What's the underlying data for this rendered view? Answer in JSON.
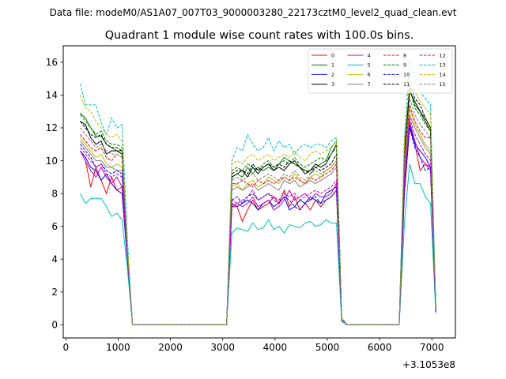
{
  "header": {
    "data_file": "Data file: modeM0/AS1A07_007T03_9000003280_22173cztM0_level2_quad_clean.evt"
  },
  "chart_data": {
    "type": "line",
    "title": "Quadrant 1 module wise count rates with 100.0s bins.",
    "xlabel": "",
    "ylabel": "",
    "x_offset_label": "+3.1053e8",
    "xlim": [
      -50,
      7450
    ],
    "ylim": [
      -0.8,
      17
    ],
    "xticks": [
      0,
      1000,
      2000,
      3000,
      4000,
      5000,
      6000,
      7000
    ],
    "yticks": [
      0,
      2,
      4,
      6,
      8,
      10,
      12,
      14,
      16
    ],
    "grid": false,
    "legend_position": "top-right",
    "x": [
      275,
      375,
      475,
      575,
      675,
      775,
      875,
      975,
      1075,
      1175,
      1275,
      1375,
      2975,
      3075,
      3175,
      3275,
      3375,
      3475,
      3575,
      3675,
      3775,
      3875,
      3975,
      4075,
      4175,
      4275,
      4375,
      4475,
      4575,
      4675,
      4775,
      4875,
      4975,
      5075,
      5175,
      5275,
      5375,
      6375,
      6475,
      6575,
      6675,
      6775,
      6875,
      6975,
      7075
    ],
    "series": [
      {
        "name": "0",
        "color": "#ff0000",
        "style": "solid",
        "values": [
          10.6,
          10.0,
          8.4,
          9.6,
          8.8,
          8.0,
          9.0,
          8.2,
          8.4,
          4.2,
          0,
          0,
          0,
          0,
          7.2,
          7.2,
          6.3,
          7.0,
          7.6,
          7.0,
          7.2,
          7.4,
          7.8,
          7.4,
          8.2,
          7.2,
          7.8,
          7.0,
          7.4,
          7.0,
          7.6,
          7.2,
          7.6,
          7.8,
          8.2,
          0.3,
          0,
          0,
          8.0,
          12.0,
          11.0,
          9.4,
          9.8,
          9.4,
          0.9
        ]
      },
      {
        "name": "1",
        "color": "#008000",
        "style": "solid",
        "values": [
          12.9,
          12.6,
          12.0,
          11.5,
          11.5,
          11.0,
          10.8,
          10.6,
          10.6,
          4.6,
          0,
          0,
          0,
          0,
          9.0,
          9.2,
          9.0,
          9.6,
          9.2,
          9.6,
          9.4,
          9.6,
          9.4,
          9.8,
          10.2,
          10.0,
          9.8,
          9.6,
          9.4,
          9.4,
          9.6,
          9.8,
          10.0,
          10.8,
          11.2,
          0.4,
          0,
          0,
          10.5,
          14.4,
          13.4,
          13.0,
          12.6,
          12.0,
          1.0
        ]
      },
      {
        "name": "2",
        "color": "#0000ff",
        "style": "solid",
        "values": [
          10.6,
          10.2,
          9.6,
          9.4,
          8.8,
          9.2,
          8.6,
          8.2,
          8.0,
          4.0,
          0,
          0,
          0,
          0,
          7.4,
          7.2,
          7.4,
          7.6,
          7.4,
          7.0,
          7.4,
          7.6,
          7.2,
          7.4,
          7.8,
          7.0,
          7.2,
          7.6,
          7.4,
          7.8,
          7.6,
          7.4,
          8.0,
          8.2,
          8.4,
          0.3,
          0,
          0,
          8.2,
          12.2,
          11.0,
          10.6,
          10.2,
          9.6,
          0.8
        ]
      },
      {
        "name": "3",
        "color": "#000000",
        "style": "solid",
        "values": [
          12.4,
          12.2,
          11.4,
          11.0,
          11.2,
          10.4,
          10.6,
          10.6,
          10.4,
          4.4,
          0,
          0,
          0,
          0,
          9.0,
          9.2,
          9.4,
          9.0,
          9.6,
          9.2,
          9.6,
          9.8,
          9.4,
          9.6,
          9.4,
          9.8,
          10.0,
          9.6,
          9.2,
          9.4,
          9.8,
          9.6,
          9.8,
          10.4,
          11.0,
          0.4,
          0,
          0,
          10.4,
          14.2,
          13.6,
          13.0,
          12.4,
          11.8,
          1.0
        ]
      },
      {
        "name": "4",
        "color": "#bf00bf",
        "style": "solid",
        "values": [
          10.6,
          10.0,
          9.4,
          9.0,
          9.6,
          9.0,
          8.6,
          9.0,
          8.4,
          4.1,
          0,
          0,
          0,
          0,
          7.2,
          7.4,
          7.2,
          7.4,
          7.8,
          7.2,
          7.4,
          7.6,
          7.0,
          7.2,
          7.6,
          8.2,
          7.6,
          7.8,
          8.0,
          7.6,
          8.0,
          7.8,
          7.8,
          8.0,
          8.6,
          0.3,
          0,
          0,
          8.6,
          12.4,
          11.2,
          10.2,
          9.8,
          9.6,
          0.9
        ]
      },
      {
        "name": "5",
        "color": "#00bfbf",
        "style": "solid",
        "values": [
          8.0,
          7.4,
          7.7,
          7.7,
          7.7,
          7.2,
          6.6,
          6.8,
          6.4,
          3.5,
          0,
          0,
          0,
          0,
          5.6,
          5.9,
          5.8,
          5.7,
          6.2,
          5.8,
          5.9,
          6.4,
          5.8,
          6.0,
          5.6,
          6.1,
          6.0,
          5.9,
          6.2,
          6.3,
          6.0,
          6.1,
          6.4,
          6.2,
          6.2,
          0.2,
          0,
          0,
          6.2,
          9.8,
          8.6,
          8.6,
          7.8,
          7.4,
          0.7
        ]
      },
      {
        "name": "6",
        "color": "#bfbf00",
        "style": "solid",
        "values": [
          11.4,
          11.0,
          10.6,
          10.2,
          10.4,
          9.8,
          9.6,
          9.8,
          9.6,
          4.3,
          0,
          0,
          0,
          0,
          8.4,
          8.6,
          8.2,
          8.6,
          8.8,
          8.4,
          8.6,
          9.0,
          8.8,
          8.6,
          9.0,
          8.8,
          9.2,
          8.8,
          8.6,
          9.0,
          9.2,
          9.0,
          9.4,
          9.6,
          10.0,
          0.3,
          0,
          0,
          9.6,
          13.2,
          12.2,
          11.6,
          11.0,
          10.6,
          0.9
        ]
      },
      {
        "name": "7",
        "color": "#808080",
        "style": "solid",
        "values": [
          11.2,
          10.8,
          10.4,
          10.0,
          10.0,
          9.6,
          9.6,
          9.4,
          9.4,
          4.3,
          0,
          0,
          0,
          0,
          8.2,
          8.4,
          8.2,
          8.4,
          8.6,
          8.2,
          8.4,
          8.6,
          8.4,
          8.2,
          8.8,
          8.6,
          8.8,
          8.4,
          8.6,
          8.8,
          8.6,
          8.8,
          9.0,
          9.2,
          9.6,
          0.3,
          0,
          0,
          9.4,
          12.8,
          12.0,
          11.4,
          10.8,
          10.4,
          0.9
        ]
      },
      {
        "name": "8",
        "color": "#ff0000",
        "style": "dashed",
        "values": [
          11.6,
          11.2,
          10.8,
          10.6,
          10.8,
          10.2,
          10.0,
          10.4,
          10.2,
          4.5,
          0,
          0,
          0,
          0,
          8.6,
          8.6,
          8.8,
          8.6,
          8.4,
          8.8,
          8.6,
          8.8,
          8.6,
          8.8,
          9.0,
          8.8,
          9.0,
          8.8,
          8.6,
          9.0,
          8.8,
          9.0,
          9.2,
          9.4,
          9.8,
          0.3,
          0,
          0,
          9.8,
          13.4,
          12.4,
          11.8,
          11.4,
          11.4,
          1.0
        ]
      },
      {
        "name": "9",
        "color": "#008000",
        "style": "dashed",
        "values": [
          12.8,
          12.4,
          12.0,
          11.6,
          11.8,
          11.2,
          11.0,
          11.0,
          10.8,
          4.7,
          0,
          0,
          0,
          0,
          9.4,
          9.6,
          9.4,
          9.8,
          9.6,
          9.4,
          9.8,
          10.0,
          9.6,
          9.8,
          10.0,
          9.8,
          10.2,
          9.8,
          9.6,
          9.8,
          10.0,
          10.2,
          10.0,
          10.4,
          10.8,
          0.4,
          0,
          0,
          10.8,
          14.4,
          13.2,
          12.8,
          12.2,
          11.8,
          1.0
        ]
      },
      {
        "name": "10",
        "color": "#0000ff",
        "style": "dashed",
        "values": [
          11.0,
          10.6,
          10.2,
          9.6,
          9.8,
          9.4,
          9.2,
          9.4,
          9.2,
          4.2,
          0,
          0,
          0,
          0,
          7.6,
          7.8,
          7.4,
          7.8,
          8.0,
          7.6,
          7.8,
          8.0,
          7.6,
          7.4,
          7.8,
          7.6,
          7.2,
          7.0,
          7.4,
          7.6,
          7.8,
          7.4,
          7.6,
          7.8,
          8.2,
          0.3,
          0,
          0,
          8.4,
          12.0,
          10.8,
          10.2,
          9.4,
          9.6,
          0.8
        ]
      },
      {
        "name": "11",
        "color": "#000000",
        "style": "dashed",
        "values": [
          12.4,
          12.0,
          11.6,
          11.4,
          11.6,
          11.0,
          10.8,
          10.8,
          10.6,
          4.6,
          0,
          0,
          0,
          0,
          9.2,
          9.4,
          9.4,
          9.2,
          9.8,
          9.4,
          9.6,
          9.8,
          9.6,
          9.8,
          9.6,
          10.0,
          9.8,
          9.6,
          9.4,
          9.2,
          9.6,
          9.4,
          9.6,
          9.8,
          10.4,
          0.4,
          0,
          0,
          10.4,
          14.6,
          13.8,
          13.4,
          12.6,
          12.0,
          1.0
        ]
      },
      {
        "name": "12",
        "color": "#bf00bf",
        "style": "dashed",
        "values": [
          10.8,
          10.4,
          10.0,
          9.6,
          9.8,
          9.2,
          9.0,
          9.2,
          9.0,
          4.2,
          0,
          0,
          0,
          0,
          7.6,
          7.4,
          7.6,
          7.8,
          8.2,
          7.6,
          7.8,
          8.0,
          7.8,
          7.6,
          8.0,
          7.8,
          8.0,
          7.6,
          7.8,
          8.0,
          8.2,
          8.0,
          8.2,
          8.4,
          8.8,
          0.3,
          0,
          0,
          8.8,
          12.6,
          11.6,
          11.0,
          10.4,
          10.0,
          0.9
        ]
      },
      {
        "name": "13",
        "color": "#00bfbf",
        "style": "dashed",
        "values": [
          14.7,
          13.4,
          13.4,
          13.4,
          12.3,
          11.6,
          12.6,
          12.0,
          12.2,
          5.4,
          0,
          0,
          0,
          0,
          10.0,
          10.8,
          10.6,
          11.6,
          11.0,
          10.6,
          10.8,
          11.4,
          10.6,
          11.2,
          10.8,
          11.0,
          10.4,
          10.8,
          11.0,
          10.8,
          11.0,
          11.0,
          10.8,
          11.2,
          11.4,
          0.4,
          0,
          0,
          11.4,
          16.2,
          15.0,
          14.2,
          13.8,
          13.4,
          1.1
        ]
      },
      {
        "name": "14",
        "color": "#bfbf00",
        "style": "dashed",
        "values": [
          14.0,
          13.2,
          13.0,
          12.4,
          12.0,
          11.6,
          11.4,
          11.6,
          11.2,
          4.9,
          0,
          0,
          0,
          0,
          9.8,
          10.0,
          9.8,
          10.2,
          10.4,
          10.0,
          10.2,
          10.4,
          10.0,
          10.2,
          10.4,
          10.2,
          10.6,
          10.2,
          10.0,
          10.4,
          10.6,
          10.4,
          10.6,
          10.8,
          11.2,
          0.4,
          0,
          0,
          11.2,
          15.0,
          14.2,
          13.6,
          13.2,
          12.8,
          1.1
        ]
      },
      {
        "name": "15",
        "color": "#808080",
        "style": "dashed",
        "values": [
          12.0,
          11.6,
          11.2,
          10.8,
          11.0,
          10.6,
          10.4,
          10.4,
          10.2,
          4.5,
          0,
          0,
          0,
          0,
          8.8,
          9.0,
          8.8,
          9.0,
          9.2,
          8.8,
          9.0,
          9.2,
          9.0,
          8.8,
          9.2,
          9.0,
          9.4,
          9.0,
          8.8,
          9.2,
          9.4,
          9.2,
          9.4,
          9.6,
          10.0,
          0.3,
          0,
          0,
          10.0,
          13.8,
          12.8,
          12.2,
          11.8,
          11.4,
          1.0
        ]
      }
    ]
  }
}
